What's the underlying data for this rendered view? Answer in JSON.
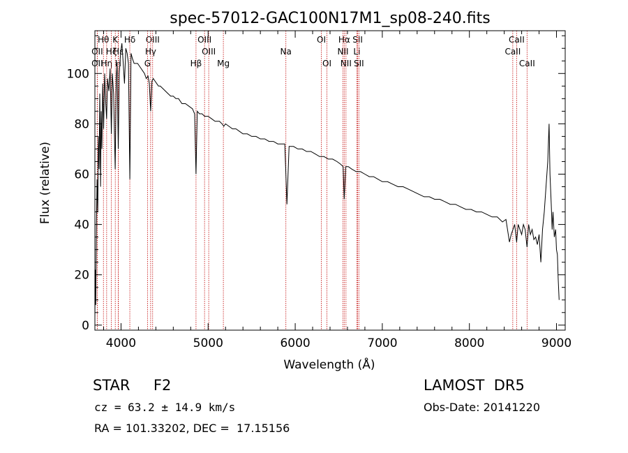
{
  "chart_data": {
    "type": "line",
    "title": "spec-57012-GAC100N17M1_sp08-240.fits",
    "xlabel": "Wavelength (Å)",
    "ylabel": "Flux (relative)",
    "xlim": [
      3700,
      9100
    ],
    "ylim": [
      -2,
      117
    ],
    "xticks": [
      4000,
      5000,
      6000,
      7000,
      8000,
      9000
    ],
    "xtick_labels": [
      "4000",
      "5000",
      "6000",
      "7000",
      "8000",
      "9000"
    ],
    "yticks": [
      0,
      20,
      40,
      60,
      80,
      100
    ],
    "ytick_labels": [
      "0",
      "20",
      "40",
      "60",
      "80",
      "100"
    ],
    "grid": false,
    "series": [
      {
        "x": [
          3700,
          3705,
          3710,
          3718,
          3725,
          3733,
          3740,
          3748,
          3756,
          3765,
          3772,
          3780,
          3790,
          3800,
          3812,
          3825,
          3835,
          3845,
          3860,
          3875,
          3889,
          3900,
          3915,
          3933,
          3945,
          3955,
          3968,
          3980,
          3995,
          4010,
          4025,
          4040,
          4055,
          4070,
          4085,
          4101,
          4115,
          4130,
          4150,
          4170,
          4190,
          4210,
          4230,
          4250,
          4270,
          4290,
          4310,
          4325,
          4340,
          4355,
          4370,
          4390,
          4410,
          4430,
          4450,
          4480,
          4510,
          4540,
          4570,
          4600,
          4630,
          4660,
          4700,
          4740,
          4780,
          4820,
          4845,
          4861,
          4875,
          4900,
          4930,
          4960,
          5000,
          5040,
          5080,
          5130,
          5160,
          5180,
          5200,
          5240,
          5280,
          5320,
          5360,
          5400,
          5450,
          5500,
          5550,
          5600,
          5650,
          5700,
          5750,
          5800,
          5850,
          5880,
          5893,
          5905,
          5930,
          5980,
          6030,
          6080,
          6130,
          6180,
          6230,
          6280,
          6330,
          6380,
          6430,
          6480,
          6520,
          6550,
          6563,
          6580,
          6610,
          6650,
          6700,
          6750,
          6800,
          6850,
          6900,
          6950,
          7000,
          7060,
          7120,
          7180,
          7240,
          7300,
          7360,
          7420,
          7480,
          7540,
          7600,
          7660,
          7720,
          7780,
          7840,
          7900,
          7960,
          8020,
          8080,
          8140,
          8200,
          8260,
          8320,
          8380,
          8420,
          8460,
          8480,
          8500,
          8520,
          8542,
          8560,
          8580,
          8600,
          8620,
          8640,
          8662,
          8680,
          8700,
          8720,
          8740,
          8760,
          8780,
          8800,
          8820,
          8840,
          8860,
          8880,
          8900,
          8915,
          8925,
          8940,
          8950,
          8960,
          8975,
          8990,
          9000,
          9010,
          9020,
          9030
        ],
        "y": [
          3,
          22,
          8,
          40,
          58,
          45,
          75,
          62,
          92,
          55,
          85,
          70,
          96,
          78,
          100,
          88,
          82,
          98,
          93,
          102,
          76,
          100,
          92,
          62,
          98,
          104,
          70,
          100,
          108,
          112,
          104,
          96,
          110,
          108,
          104,
          58,
          108,
          106,
          104,
          104,
          104,
          103,
          102,
          101,
          100,
          98,
          99,
          96,
          85,
          97,
          98,
          97,
          96,
          95,
          95,
          94,
          93,
          92,
          91,
          91,
          90,
          90,
          88,
          88,
          87,
          86,
          84,
          60,
          85,
          84,
          84,
          83,
          83,
          82,
          81,
          81,
          80,
          79,
          80,
          79,
          78,
          78,
          77,
          76,
          76,
          75,
          75,
          74,
          74,
          73,
          73,
          72,
          72,
          72,
          60,
          48,
          71,
          71,
          70,
          70,
          69,
          69,
          68,
          67,
          67,
          66,
          66,
          65,
          64,
          63,
          50,
          63,
          63,
          62,
          61,
          61,
          60,
          59,
          59,
          58,
          57,
          57,
          56,
          55,
          55,
          54,
          53,
          52,
          51,
          51,
          50,
          50,
          49,
          48,
          48,
          47,
          46,
          46,
          45,
          45,
          44,
          43,
          43,
          41,
          42,
          33,
          36,
          38,
          40,
          33,
          40,
          38,
          36,
          40,
          38,
          31,
          40,
          36,
          38,
          34,
          35,
          32,
          36,
          25,
          38,
          45,
          55,
          65,
          80,
          60,
          48,
          38,
          45,
          35,
          38,
          30,
          28,
          18,
          10
        ]
      }
    ],
    "spectral_lines": [
      {
        "label": "Hθ",
        "wave": 3798,
        "row": 0
      },
      {
        "label": "OII",
        "wave": 3727,
        "row": 1
      },
      {
        "label": "OII",
        "wave": 3727,
        "row": 2
      },
      {
        "label": "Hη",
        "wave": 3835,
        "row": 2
      },
      {
        "label": "Hζ",
        "wave": 3889,
        "row": 1
      },
      {
        "label": "K",
        "wave": 3934,
        "row": 0
      },
      {
        "label": "H",
        "wave": 3968,
        "row": 2
      },
      {
        "label": "Hε",
        "wave": 3970,
        "row": 1
      },
      {
        "label": "Hδ",
        "wave": 4101,
        "row": 0
      },
      {
        "label": "OIII",
        "wave": 4363,
        "row": 0
      },
      {
        "label": "Hγ",
        "wave": 4340,
        "row": 1
      },
      {
        "label": "G",
        "wave": 4304,
        "row": 2
      },
      {
        "label": "OIII",
        "wave": 4959,
        "row": 0
      },
      {
        "label": "OIII",
        "wave": 5007,
        "row": 1
      },
      {
        "label": "Hβ",
        "wave": 4861,
        "row": 2
      },
      {
        "label": "Mg",
        "wave": 5175,
        "row": 2
      },
      {
        "label": "Na",
        "wave": 5893,
        "row": 1
      },
      {
        "label": "OI",
        "wave": 6300,
        "row": 0
      },
      {
        "label": "OI",
        "wave": 6364,
        "row": 2
      },
      {
        "label": "Hα",
        "wave": 6563,
        "row": 0
      },
      {
        "label": "NII",
        "wave": 6548,
        "row": 1
      },
      {
        "label": "NII",
        "wave": 6583,
        "row": 2
      },
      {
        "label": "SII",
        "wave": 6717,
        "row": 0
      },
      {
        "label": "Li",
        "wave": 6708,
        "row": 1
      },
      {
        "label": "SII",
        "wave": 6731,
        "row": 2
      },
      {
        "label": "CaII",
        "wave": 8542,
        "row": 0
      },
      {
        "label": "CaII",
        "wave": 8498,
        "row": 1
      },
      {
        "label": "CaII",
        "wave": 8662,
        "row": 2
      }
    ],
    "line_marker_color": "#c00000"
  },
  "info": {
    "object_type": "STAR     F2",
    "survey": "LAMOST  DR5",
    "cz": "cz = 63.2 ± 14.9 km/s",
    "obs_date": "Obs-Date: 20141220",
    "radec": "RA = 101.33202, DEC =  17.15156"
  }
}
